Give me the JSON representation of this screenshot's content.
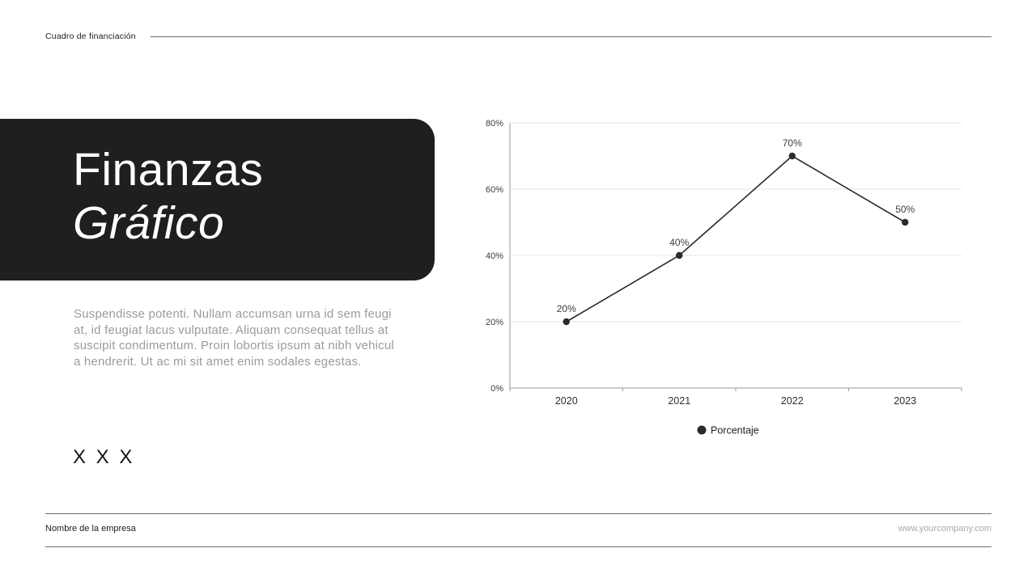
{
  "slide": {
    "eyebrow": "Cuadro de financiación",
    "title_line1": "Finanzas",
    "title_line2": "Gráfico",
    "body_lines": [
      "Suspendisse potenti. Nullam accumsan urna id sem feugi",
      "at, id feugiat lacus vulputate. Aliquam consequat tellus at",
      "suscipit condimentum. Proin lobortis ipsum at nibh vehicul",
      "a hendrerit. Ut ac mi sit amet enim sodales egestas."
    ],
    "placeholder": "X X X",
    "footer": {
      "company": "Nombre de la empresa",
      "website": "www.yourcompany.com"
    }
  },
  "colors": {
    "title_box_bg": "#1f1f1f",
    "title_text": "#ffffff",
    "body_text": "#9b9b9b",
    "rule": "#6e6e6e",
    "chart_line": "#2b2b2b",
    "grid": "#e4e4e4",
    "axis": "#9a9a9a"
  },
  "chart_data": {
    "type": "line",
    "categories": [
      "2020",
      "2021",
      "2022",
      "2023"
    ],
    "series": [
      {
        "name": "Porcentaje",
        "values": [
          20,
          40,
          70,
          50
        ]
      }
    ],
    "point_labels": [
      "20%",
      "40%",
      "70%",
      "50%"
    ],
    "xlabel": "",
    "ylabel": "",
    "ylim": [
      0,
      80
    ],
    "yticks": [
      0,
      20,
      40,
      60,
      80
    ],
    "ytick_labels": [
      "0%",
      "20%",
      "40%",
      "60%",
      "80%"
    ],
    "grid": true,
    "legend_position": "bottom",
    "legend": [
      {
        "label": "Porcentaje",
        "marker": "circle"
      }
    ],
    "line_color": "#2b2b2b",
    "marker": "circle"
  }
}
